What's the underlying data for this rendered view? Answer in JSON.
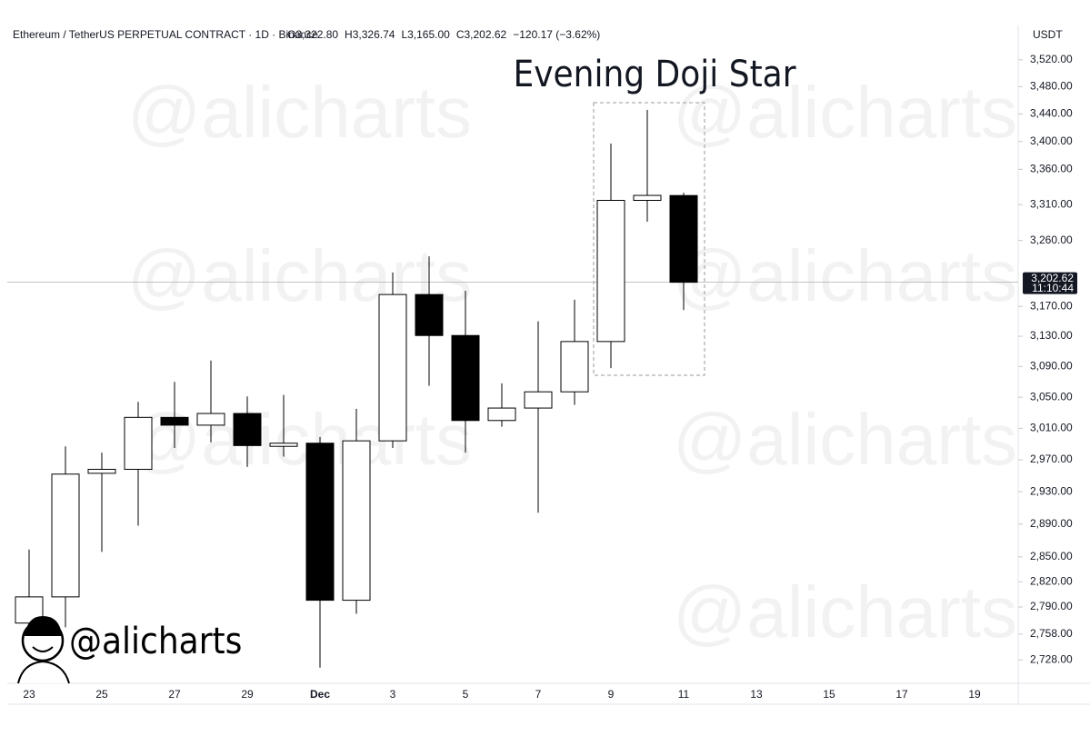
{
  "chart_data": {
    "type": "candlestick",
    "header": {
      "symbol": "Ethereum / TetherUS PERPETUAL CONTRACT · 1D · Binance",
      "ohlc_labels": [
        "O3,322.80",
        "H3,326.74",
        "L3,165.00",
        "C3,202.62",
        "−120.17 (−3.62%)"
      ]
    },
    "currency": "USDT",
    "annotation": "Evening Doji Star",
    "watermark": "@alicharts",
    "last_price": {
      "value": 3202.62,
      "label": "3,202.62"
    },
    "countdown": "11:10:44",
    "log_scale": true,
    "up_color": "#ffffff",
    "down_color": "#000000",
    "edge_color": "#000000",
    "categories": [
      "23",
      null,
      "25",
      null,
      "27",
      null,
      "29",
      null,
      "Dec",
      null,
      "3",
      null,
      "5",
      null,
      "7",
      null,
      "9",
      null,
      "11",
      null,
      "13",
      null,
      "15",
      null,
      "17",
      null,
      "19"
    ],
    "open": [
      2771,
      2802,
      2953,
      2958,
      3024,
      3014,
      3029,
      2987,
      2991,
      2798,
      2994,
      3186,
      3131,
      3020,
      3036,
      3057,
      3123,
      3316,
      3322.8,
      null,
      null,
      null,
      null,
      null,
      null,
      null,
      null
    ],
    "high": [
      2859,
      2987,
      2979,
      3044,
      3070,
      3098,
      3051,
      3053,
      2999,
      3035,
      3216,
      3238,
      3191,
      3068,
      3150,
      3179,
      3397,
      3446,
      3326.74,
      null,
      null,
      null,
      null,
      null,
      null,
      null,
      null
    ],
    "low": [
      2740,
      2766,
      2856,
      2888,
      2985,
      2992,
      2961,
      2974,
      2719,
      2782,
      2985,
      3065,
      2979,
      3012,
      2904,
      3040,
      3088,
      3286,
      3165.0,
      null,
      null,
      null,
      null,
      null,
      null,
      null,
      null
    ],
    "close": [
      2802,
      2952,
      2958,
      3024,
      3014,
      3029,
      2988,
      2991,
      2798,
      2994,
      3186,
      3131,
      3020,
      3036,
      3057,
      3123,
      3316,
      3323,
      3202.62,
      null,
      null,
      null,
      null,
      null,
      null,
      null,
      null
    ],
    "ylim": [
      2701,
      3569
    ],
    "yticks": [
      {
        "value": 3520,
        "label": "3,520.00"
      },
      {
        "value": 3480,
        "label": "3,480.00"
      },
      {
        "value": 3440,
        "label": "3,440.00"
      },
      {
        "value": 3400,
        "label": "3,400.00"
      },
      {
        "value": 3360,
        "label": "3,360.00"
      },
      {
        "value": 3310,
        "label": "3,310.00"
      },
      {
        "value": 3260,
        "label": "3,260.00"
      },
      {
        "value": 3170,
        "label": "3,170.00"
      },
      {
        "value": 3130,
        "label": "3,130.00"
      },
      {
        "value": 3090,
        "label": "3,090.00"
      },
      {
        "value": 3050,
        "label": "3,050.00"
      },
      {
        "value": 3010,
        "label": "3,010.00"
      },
      {
        "value": 2970,
        "label": "2,970.00"
      },
      {
        "value": 2930,
        "label": "2,930.00"
      },
      {
        "value": 2890,
        "label": "2,890.00"
      },
      {
        "value": 2850,
        "label": "2,850.00"
      },
      {
        "value": 2820,
        "label": "2,820.00"
      },
      {
        "value": 2790,
        "label": "2,790.00"
      },
      {
        "value": 2758,
        "label": "2,758.00"
      },
      {
        "value": 2728,
        "label": "2,728.00"
      }
    ]
  }
}
